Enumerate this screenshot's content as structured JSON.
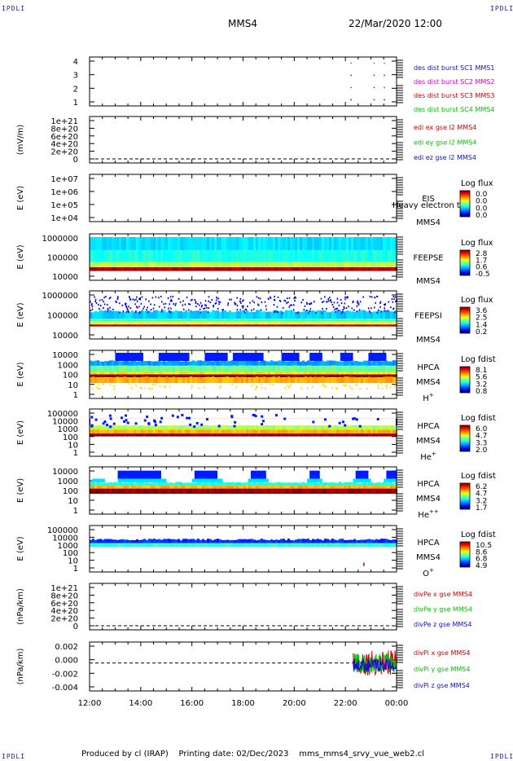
{
  "header": {
    "spacecraft": "MMS4",
    "datetime": "22/Mar/2020 12:00",
    "corner_label": "IPDLI"
  },
  "footer": {
    "produced_by": "Produced by cl (IRAP)",
    "printing": "Printing date: 02/Dec/2023",
    "filename": "mms_mms4_srvy_vue_web2.cl"
  },
  "colors": {
    "blue": "#1010c8",
    "magenta": "#d000d0",
    "red": "#d00000",
    "green": "#00c000"
  },
  "chart_data": [
    {
      "type": "scatter",
      "id": "burst",
      "ylabel": "",
      "yticks": [
        "1",
        "2",
        "3",
        "4"
      ],
      "ylim": [
        0.5,
        4.5
      ],
      "legend": [
        {
          "text": "des dist burst SC1 MMS1",
          "color": "#1010c8"
        },
        {
          "text": "des dist burst SC2 MMS2",
          "color": "#d000d0"
        },
        {
          "text": "des dist burst SC3 MMS3",
          "color": "#d00000"
        },
        {
          "text": "des dist burst SC4 MMS4",
          "color": "#00c000"
        }
      ],
      "marks_hours": [
        22.2,
        23.1,
        23.5
      ]
    },
    {
      "type": "line",
      "id": "edi",
      "ylabel": "(mV/m)",
      "yticks": [
        "0",
        "2e+20",
        "4e+20",
        "6e+20",
        "8e+20",
        "1e+21"
      ],
      "legend": [
        {
          "text": "edi ex gse l2 MMS4",
          "color": "#d00000"
        },
        {
          "text": "edi ey gse l2 MMS4",
          "color": "#00c000"
        },
        {
          "text": "edi ez gse l2 MMS4",
          "color": "#1010c8"
        }
      ]
    },
    {
      "type": "heatmap",
      "id": "eis",
      "ylabel": "E (eV)",
      "yticks": [
        "1e+04",
        "1e+05",
        "1e+06",
        "1e+07"
      ],
      "instrument": "EIS",
      "sc": "MMS4",
      "overlay": "Heavy electron to",
      "cbar_title": "Log flux",
      "cbar_ticks": [
        "0.0",
        "0.0",
        "0.0",
        "0.0"
      ]
    },
    {
      "type": "heatmap",
      "id": "feepse",
      "ylabel": "E (eV)",
      "yticks": [
        "10000",
        "100000",
        "1000000"
      ],
      "instrument": "FEEPSE",
      "sc": "MMS4",
      "cbar_title": "Log flux",
      "cbar_ticks": [
        "2.8",
        "1.7",
        "0.6",
        "-0.5"
      ]
    },
    {
      "type": "heatmap",
      "id": "feepsi",
      "ylabel": "E (eV)",
      "yticks": [
        "10000",
        "100000",
        "1000000"
      ],
      "instrument": "FEEPSI",
      "sc": "MMS4",
      "cbar_title": "Log flux",
      "cbar_ticks": [
        "3.6",
        "2.5",
        "1.4",
        "0.2"
      ]
    },
    {
      "type": "heatmap",
      "id": "hpca_h",
      "ylabel": "E (eV)",
      "yticks": [
        "1",
        "10",
        "100",
        "1000",
        "10000"
      ],
      "instrument": "HPCA",
      "sc": "MMS4",
      "species": "H",
      "species_sup": "+",
      "cbar_title": "Log fdist",
      "cbar_ticks": [
        "8.1",
        "5.6",
        "3.2",
        "0.8"
      ]
    },
    {
      "type": "heatmap",
      "id": "hpca_he",
      "ylabel": "E (eV)",
      "yticks": [
        "1",
        "10",
        "100",
        "1000",
        "10000",
        "100000"
      ],
      "instrument": "HPCA",
      "sc": "MMS4",
      "species": "He",
      "species_sup": "+",
      "cbar_title": "Log fdist",
      "cbar_ticks": [
        "6.0",
        "4.7",
        "3.3",
        "2.0"
      ]
    },
    {
      "type": "heatmap",
      "id": "hpca_hepp",
      "ylabel": "E (eV)",
      "yticks": [
        "1",
        "10",
        "100",
        "1000",
        "10000"
      ],
      "instrument": "HPCA",
      "sc": "MMS4",
      "species": "He",
      "species_sup": "++",
      "cbar_title": "Log fdist",
      "cbar_ticks": [
        "6.2",
        "4.7",
        "3.2",
        "1.7"
      ]
    },
    {
      "type": "heatmap",
      "id": "hpca_o",
      "ylabel": "E (eV)",
      "yticks": [
        "1",
        "10",
        "100",
        "1000",
        "10000",
        "100000"
      ],
      "instrument": "HPCA",
      "sc": "MMS4",
      "species": "O",
      "species_sup": "+",
      "cbar_title": "Log fdist",
      "cbar_ticks": [
        "10.5",
        "8.6",
        "6.8",
        "4.9"
      ]
    },
    {
      "type": "line",
      "id": "divpe",
      "ylabel": "(nPa/km)",
      "yticks": [
        "0",
        "2e+20",
        "4e+20",
        "6e+20",
        "8e+20",
        "1e+21"
      ],
      "legend": [
        {
          "text": "divPe x gse MMS4",
          "color": "#d00000"
        },
        {
          "text": "divPe y gse MMS4",
          "color": "#00c000"
        },
        {
          "text": "divPe z gse MMS4",
          "color": "#1010c8"
        }
      ]
    },
    {
      "type": "line",
      "id": "divpi",
      "ylabel": "(nPa/km)",
      "yticks": [
        "-0.004",
        "-0.002",
        "0.000",
        "0.002"
      ],
      "ylim": [
        -0.004,
        0.003
      ],
      "active_from_hour": 22.3,
      "legend": [
        {
          "text": "divPi x gse MMS4",
          "color": "#d00000"
        },
        {
          "text": "divPi y gse MMS4",
          "color": "#00c000"
        },
        {
          "text": "divPi z gse MMS4",
          "color": "#1010c8"
        }
      ]
    }
  ],
  "xaxis": {
    "ticks": [
      "12:00",
      "14:00",
      "16:00",
      "18:00",
      "20:00",
      "22:00",
      "00:00"
    ],
    "start_hour": 12,
    "end_hour": 24
  }
}
